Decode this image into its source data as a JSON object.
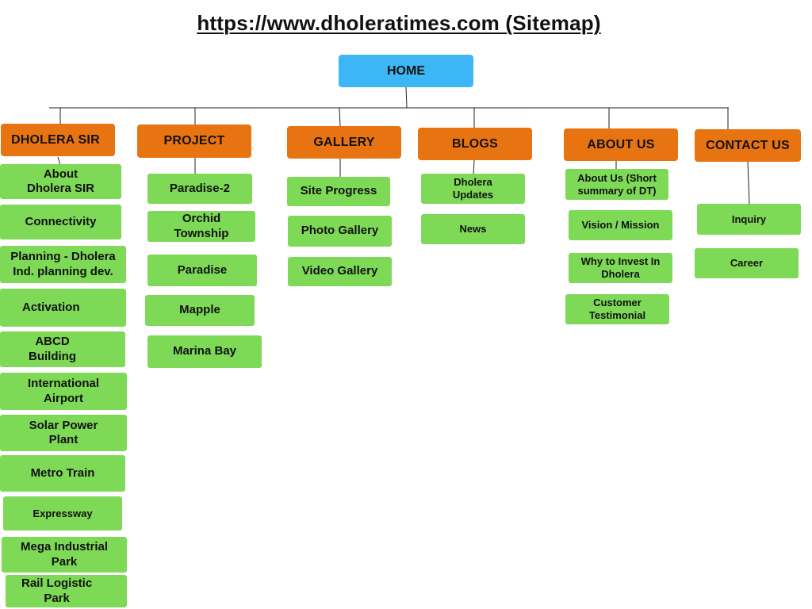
{
  "title": "https://www.dholeratimes.com (Sitemap)",
  "colors": {
    "home": "#3cb6f4",
    "category": "#e87411",
    "page": "#7ed957",
    "connector": "#222222"
  },
  "home": "HOME",
  "sections": {
    "dholera_sir": {
      "label": "DHOLERA SIR",
      "pages": [
        "About\nDholera SIR",
        "Connectivity",
        "Planning - Dholera\nInd. planning dev.",
        "Activation",
        "ABCD\nBuilding",
        "International\nAirport",
        "Solar Power\nPlant",
        "Metro Train",
        "Expressway",
        "Mega Industrial\nPark",
        "Rail Logistic\nPark"
      ]
    },
    "project": {
      "label": "PROJECT",
      "pages": [
        "Paradise-2",
        "Orchid\nTownship",
        "Paradise",
        "Mapple",
        "Marina Bay"
      ]
    },
    "gallery": {
      "label": "GALLERY",
      "pages": [
        "Site Progress",
        "Photo Gallery",
        "Video Gallery"
      ]
    },
    "blogs": {
      "label": "BLOGS",
      "pages": [
        "Dholera\nUpdates",
        "News"
      ]
    },
    "about_us": {
      "label": "ABOUT US",
      "pages": [
        "About Us (Short\nsummary of DT)",
        "Vision / Mission",
        "Why to Invest In\nDholera",
        "Customer\nTestimonial"
      ]
    },
    "contact_us": {
      "label": "CONTACT US",
      "pages": [
        "Inquiry",
        "Career"
      ]
    }
  }
}
